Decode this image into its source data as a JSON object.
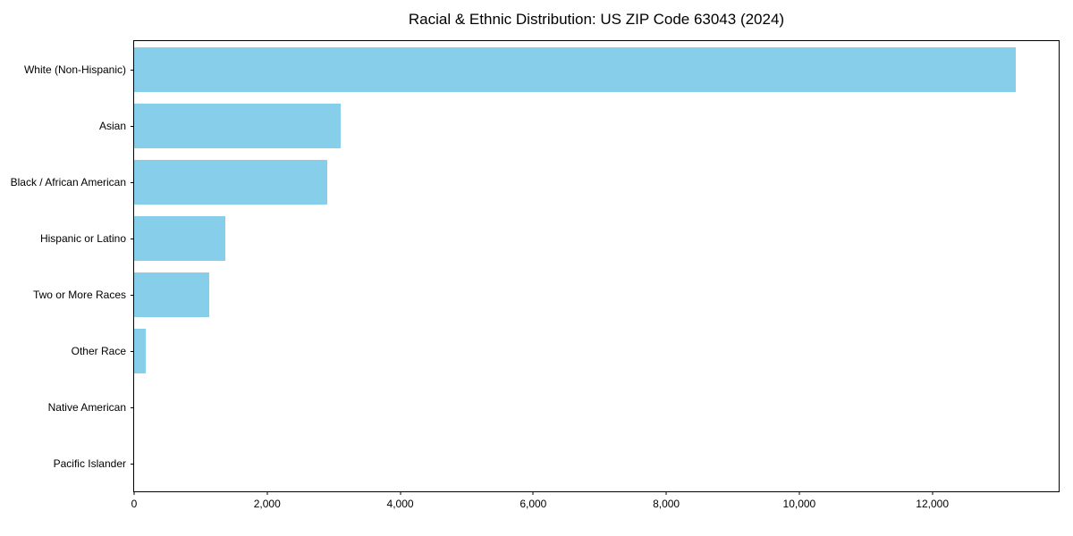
{
  "chart_data": {
    "type": "bar",
    "orientation": "horizontal",
    "title": "Racial & Ethnic Distribution: US ZIP Code 63043 (2024)",
    "categories": [
      "White (Non-Hispanic)",
      "Asian",
      "Black / African American",
      "Hispanic or Latino",
      "Two or More Races",
      "Other Race",
      "Native American",
      "Pacific Islander"
    ],
    "values": [
      13250,
      3100,
      2900,
      1370,
      1130,
      175,
      0,
      0
    ],
    "bar_color": "#87CEEB",
    "xlabel": "",
    "ylabel": "",
    "xlim": [
      0,
      13900
    ],
    "x_ticks": [
      0,
      2000,
      4000,
      6000,
      8000,
      10000,
      12000
    ],
    "x_tick_labels": [
      "0",
      "2,000",
      "4,000",
      "6,000",
      "8,000",
      "10,000",
      "12,000"
    ],
    "grid": false,
    "legend": null,
    "frame": "full-box"
  }
}
